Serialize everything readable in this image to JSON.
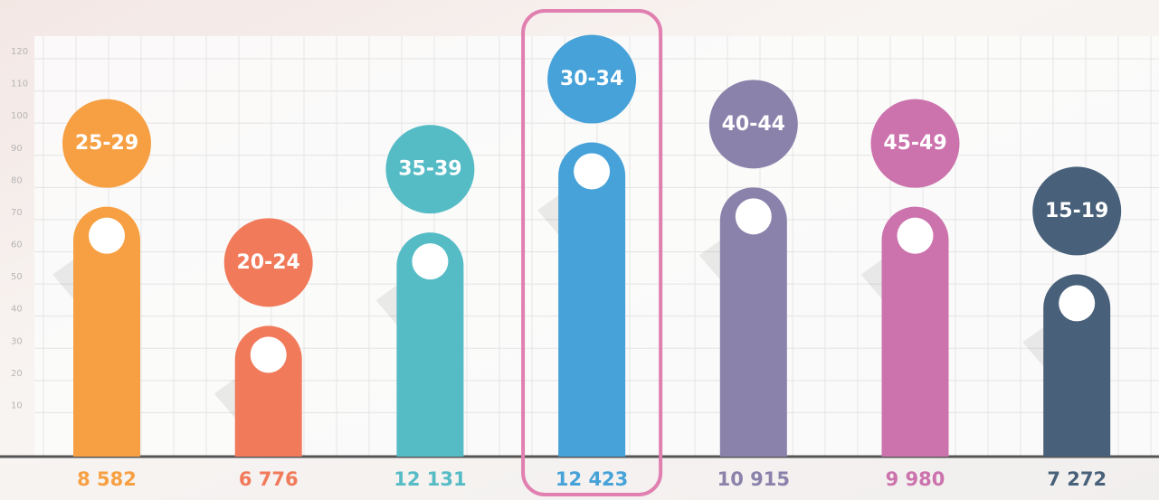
{
  "chart_data": {
    "type": "bar",
    "categories": [
      "25-29",
      "20-24",
      "35-39",
      "30-34",
      "40-44",
      "45-49",
      "15-19"
    ],
    "values": [
      74,
      37,
      66,
      94,
      80,
      74,
      53
    ],
    "totals": [
      "8 582",
      "6 776",
      "12 131",
      "12 423",
      "10 915",
      "9 980",
      "7 272"
    ],
    "colors": [
      "#f7a043",
      "#f07a5a",
      "#55bcc6",
      "#46a2d8",
      "#8b82ab",
      "#cc72ad",
      "#48607a"
    ],
    "highlight_index": 3,
    "ylim": [
      0,
      120
    ],
    "yticks": [
      10,
      20,
      30,
      40,
      50,
      60,
      70,
      80,
      90,
      100,
      110,
      120
    ],
    "grid": true
  }
}
